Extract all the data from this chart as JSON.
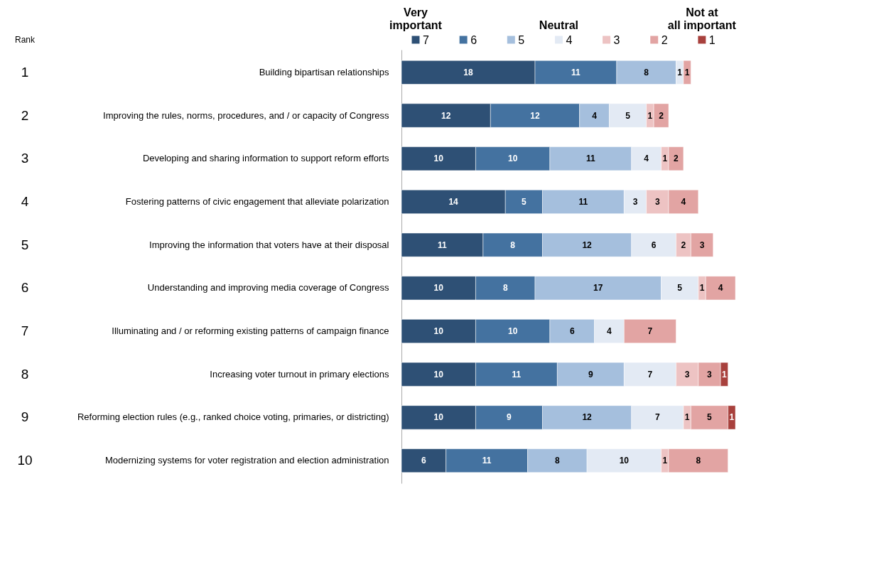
{
  "chart_data": {
    "type": "bar",
    "orientation": "horizontal",
    "stacked": true,
    "data_labels": true,
    "legend": "top",
    "tick_labels": "y",
    "categories": [
      "Building bipartisan relationships",
      "Improving the rules, norms, procedures, and / or capacity of Congress",
      "Developing and sharing information to support reform efforts",
      "Fostering patterns of civic engagement that alleviate polarization",
      "Improving the information that voters have at their disposal",
      "Understanding and improving media coverage of Congress",
      "Illuminating and / or reforming existing patterns of campaign finance",
      "Increasing voter turnout in primary elections",
      "Reforming election rules (e.g., ranked choice voting, primaries, or districting)",
      "Modernizing systems for voter registration and election administration"
    ],
    "series": [
      {
        "name": "7",
        "color": "#2e5075",
        "values": [
          18,
          12,
          10,
          14,
          11,
          10,
          10,
          10,
          10,
          6
        ]
      },
      {
        "name": "6",
        "color": "#4472a0",
        "values": [
          11,
          12,
          10,
          5,
          8,
          8,
          10,
          11,
          9,
          11
        ]
      },
      {
        "name": "5",
        "color": "#a5bfdd",
        "values": [
          8,
          4,
          11,
          11,
          12,
          17,
          6,
          9,
          12,
          8
        ]
      },
      {
        "name": "4",
        "color": "#e3eaf4",
        "values": [
          1,
          5,
          4,
          3,
          6,
          5,
          4,
          7,
          7,
          10
        ]
      },
      {
        "name": "3",
        "color": "#edc3c3",
        "values": [
          null,
          1,
          1,
          3,
          2,
          1,
          null,
          3,
          1,
          1
        ]
      },
      {
        "name": "2",
        "color": "#e2a4a3",
        "values": [
          1,
          2,
          2,
          4,
          3,
          4,
          7,
          3,
          5,
          8
        ]
      },
      {
        "name": "1",
        "color": "#a8413d",
        "values": [
          null,
          null,
          null,
          null,
          null,
          null,
          null,
          1,
          1,
          null
        ]
      }
    ],
    "annotations": [
      "Very important",
      "Neutral",
      "Not at all important",
      "Rank",
      "1",
      "2",
      "3",
      "4",
      "5",
      "6",
      "7",
      "8",
      "9",
      "10"
    ]
  }
}
